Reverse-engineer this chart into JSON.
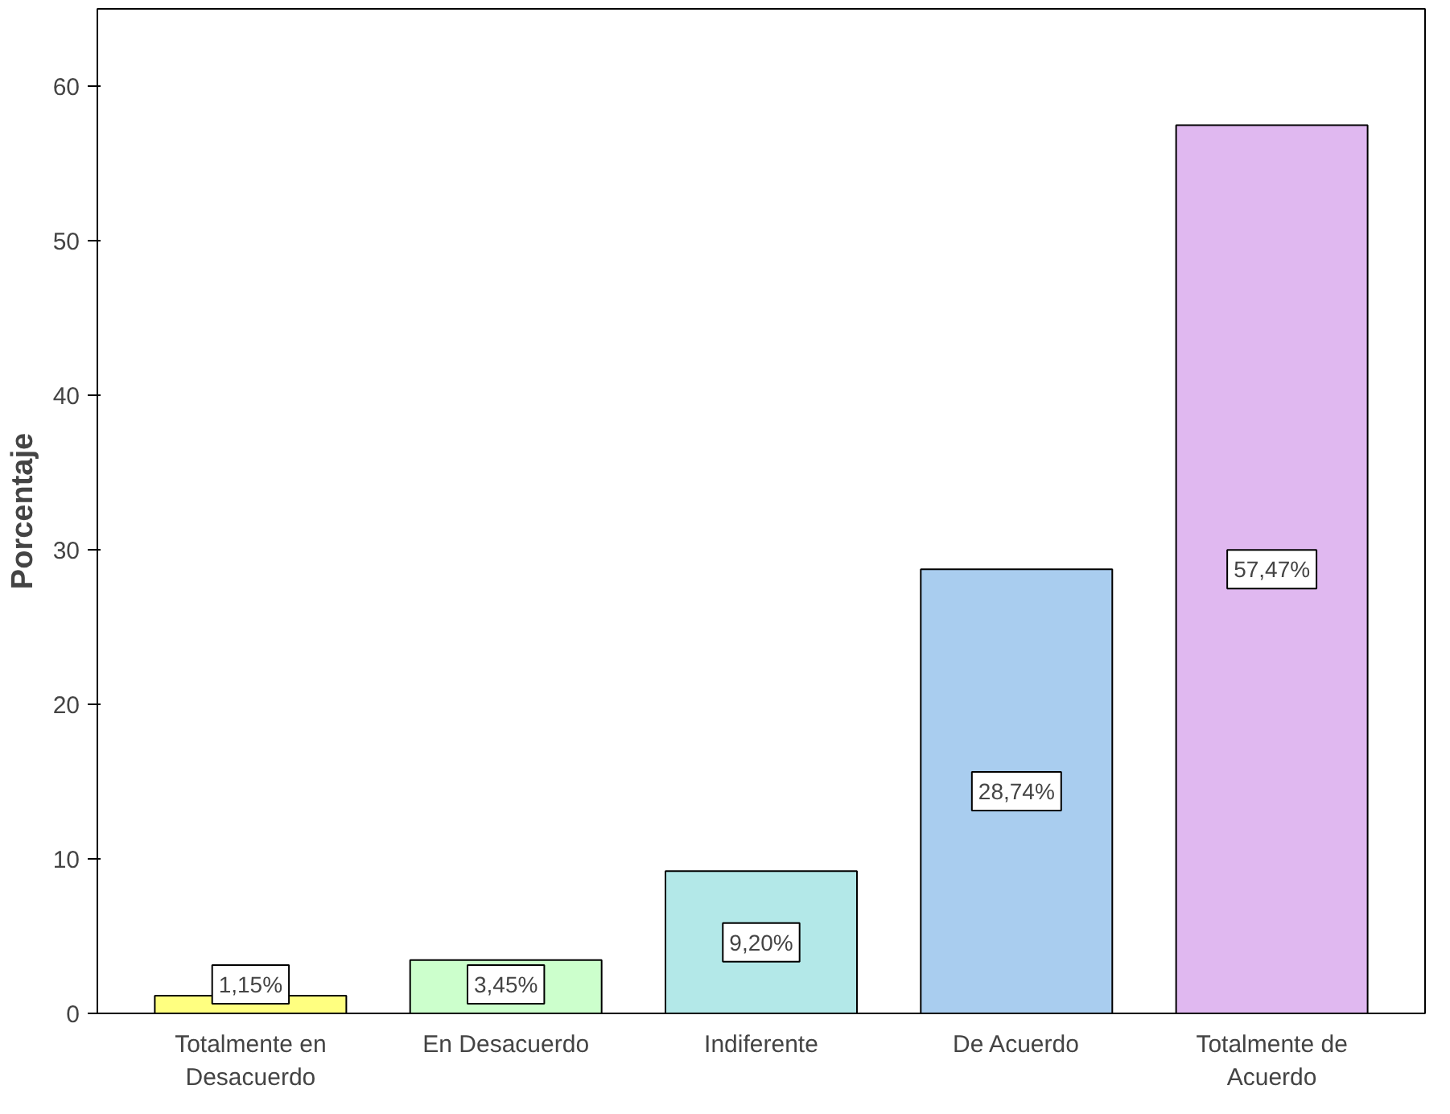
{
  "chart_data": {
    "type": "bar",
    "ylabel": "Porcentaje",
    "categories": [
      "Totalmente en Desacuerdo",
      "En Desacuerdo",
      "Indiferente",
      "De Acuerdo",
      "Totalmente de Acuerdo"
    ],
    "values": [
      1.15,
      3.45,
      9.2,
      28.74,
      57.47
    ],
    "colors": [
      "#ffff80",
      "#ccffcc",
      "#b3e8e8",
      "#a9cdef",
      "#e0b8f0"
    ],
    "value_labels": [
      "1,15%",
      "3,45%",
      "9,20%",
      "28,74%",
      "57,47%"
    ],
    "ylim": [
      0,
      65
    ],
    "yticks": [
      0,
      10,
      20,
      30,
      40,
      50,
      60
    ],
    "grid": false
  }
}
